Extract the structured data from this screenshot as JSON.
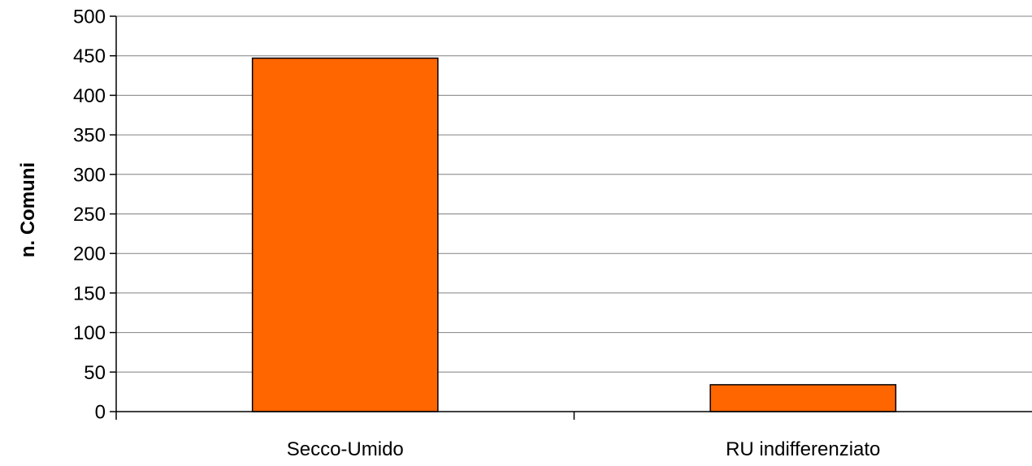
{
  "chart_data": {
    "type": "bar",
    "categories": [
      "Secco-Umido",
      "RU indifferenziato"
    ],
    "values": [
      447,
      34
    ],
    "title": "",
    "xlabel": "",
    "ylabel": "n. Comuni",
    "ylim": [
      0,
      500
    ],
    "yticks": [
      0,
      50,
      100,
      150,
      200,
      250,
      300,
      350,
      400,
      450,
      500
    ],
    "grid": true,
    "legend": "none",
    "colors": {
      "bar_fill": "#FF6600",
      "bar_stroke": "#000000",
      "grid": "#808080",
      "axis": "#000000"
    }
  }
}
